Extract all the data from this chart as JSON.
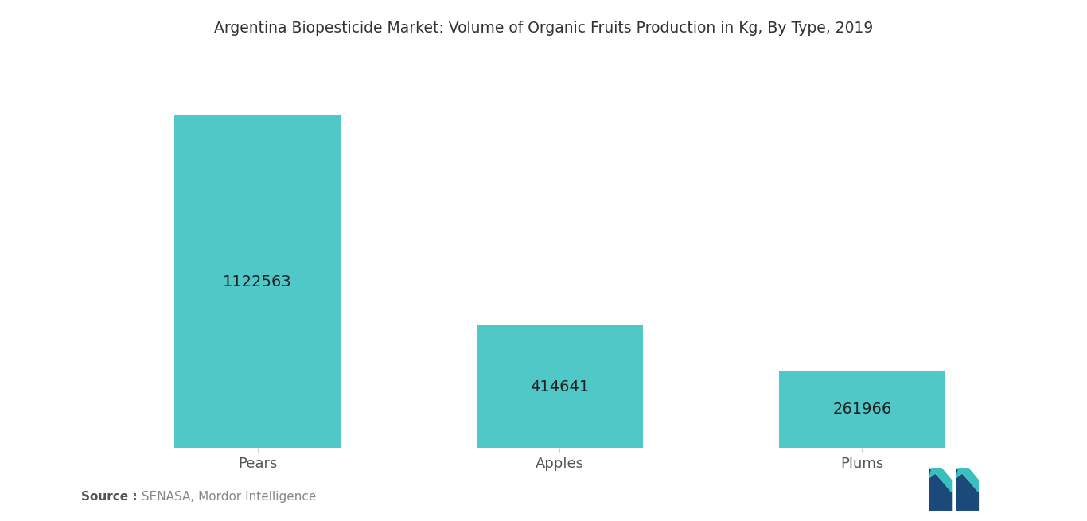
{
  "title": "Argentina Biopesticide Market: Volume of Organic Fruits Production in Kg, By Type, 2019",
  "categories": [
    "Pears",
    "Apples",
    "Plums"
  ],
  "values": [
    1122563,
    414641,
    261966
  ],
  "bar_color": "#50C8C8",
  "bar_labels": [
    "1122563",
    "414641",
    "261966"
  ],
  "source_bold": "Source :",
  "source_rest": " SENASA, Mordor Intelligence",
  "background_color": "#ffffff",
  "title_fontsize": 13.5,
  "label_fontsize": 14,
  "tick_fontsize": 13,
  "source_fontsize": 11,
  "ylim": [
    0,
    1300000
  ],
  "bar_width": 0.55,
  "logo_teal": "#3ABFBF",
  "logo_dark": "#1B4A7A"
}
